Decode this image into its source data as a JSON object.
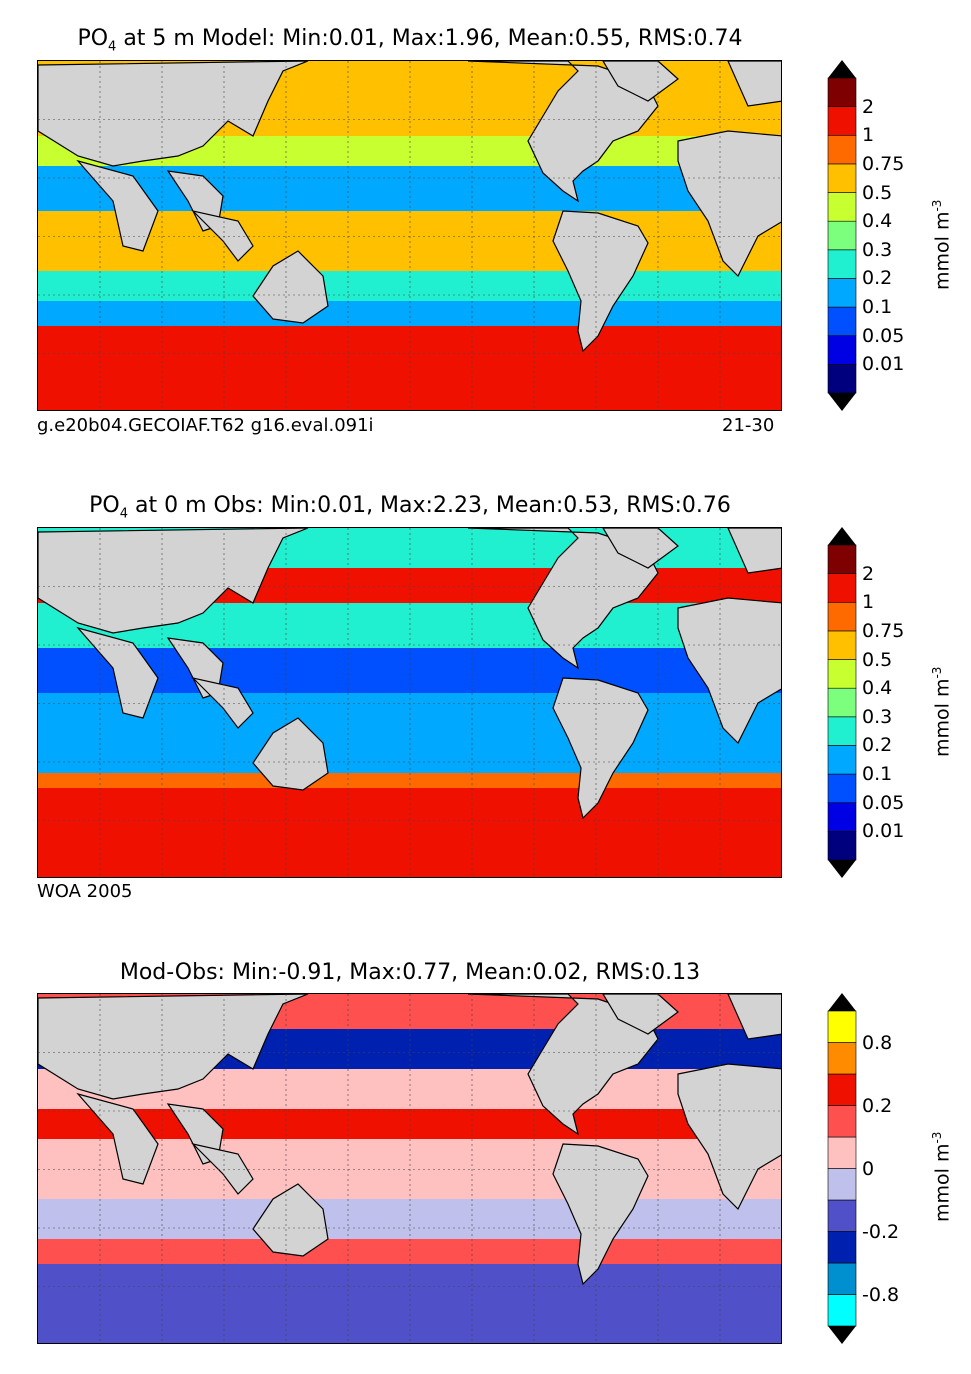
{
  "panels": [
    {
      "title_prefix": "PO",
      "title_sub": "4",
      "title_rest": " at 5 m Model: Min:0.01, Max:1.96, Mean:0.55, RMS:0.74",
      "caption_left": "g.e20b04.GECOIAF.T62 g16.eval.091i",
      "caption_right": "21-30",
      "unit": "mmol m",
      "unit_exp": "-3",
      "ticks": [
        "0.01",
        "0.05",
        "0.1",
        "0.2",
        "0.3",
        "0.4",
        "0.5",
        "0.75",
        "1",
        "2"
      ],
      "colors": [
        "#00007f",
        "#0000e5",
        "#0050ff",
        "#00a8ff",
        "#20f0d0",
        "#7cff7c",
        "#c8ff30",
        "#ffc000",
        "#ff6a00",
        "#f01000",
        "#7f0000"
      ]
    },
    {
      "title_prefix": "PO",
      "title_sub": "4",
      "title_rest": " at 0 m Obs: Min:0.01, Max:2.23, Mean:0.53, RMS:0.76",
      "caption_left": "WOA 2005",
      "caption_right": "",
      "unit": "mmol m",
      "unit_exp": "-3",
      "ticks": [
        "0.01",
        "0.05",
        "0.1",
        "0.2",
        "0.3",
        "0.4",
        "0.5",
        "0.75",
        "1",
        "2"
      ],
      "colors": [
        "#00007f",
        "#0000e5",
        "#0050ff",
        "#00a8ff",
        "#20f0d0",
        "#7cff7c",
        "#c8ff30",
        "#ffc000",
        "#ff6a00",
        "#f01000",
        "#7f0000"
      ]
    },
    {
      "title_prefix": "Mod-Obs: Min:-0.91, Max:0.77, Mean:0.02, RMS:0.13",
      "title_sub": "",
      "title_rest": "",
      "caption_left": "",
      "caption_right": "",
      "unit": "mmol m",
      "unit_exp": "-3",
      "ticks": [
        "-0.8",
        "",
        "-0.2",
        "",
        "0",
        "",
        "0.2",
        "",
        "0.8"
      ],
      "colors": [
        "#00ffff",
        "#0090d0",
        "#0020b0",
        "#5050c8",
        "#c0c0ec",
        "#ffc0c0",
        "#ff5050",
        "#f01000",
        "#ff8c00",
        "#ffff00"
      ]
    }
  ]
}
